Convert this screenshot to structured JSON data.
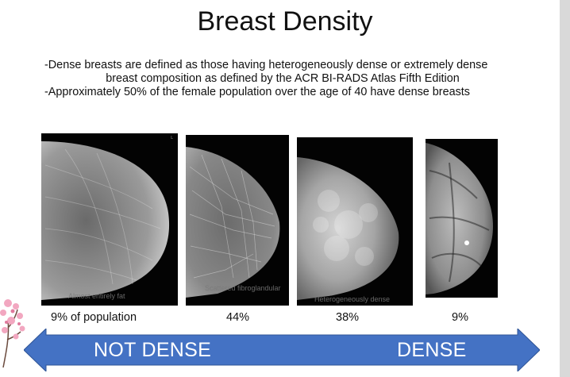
{
  "slide": {
    "title": "Breast Density",
    "bullets": [
      "-Dense breasts are defined as those having heterogeneously dense or extremely dense",
      "breast composition as defined by the ACR BI-RADS Atlas Fifth Edition",
      "-Approximately 50% of the female population over the age of 40 have dense breasts"
    ],
    "images": [
      {
        "overlay_label": "Almost entirely fat",
        "caption": "9% of population"
      },
      {
        "overlay_label": "Scattered fibroglandular",
        "caption": "44%"
      },
      {
        "overlay_label": "Heterogeneously dense",
        "caption": "38%"
      },
      {
        "overlay_label": "",
        "caption": "9%"
      }
    ],
    "arrow": {
      "left_label": "NOT DENSE",
      "right_label": "DENSE",
      "fill": "#4472c4",
      "border": "#2f5597"
    },
    "image_marker": "L"
  }
}
